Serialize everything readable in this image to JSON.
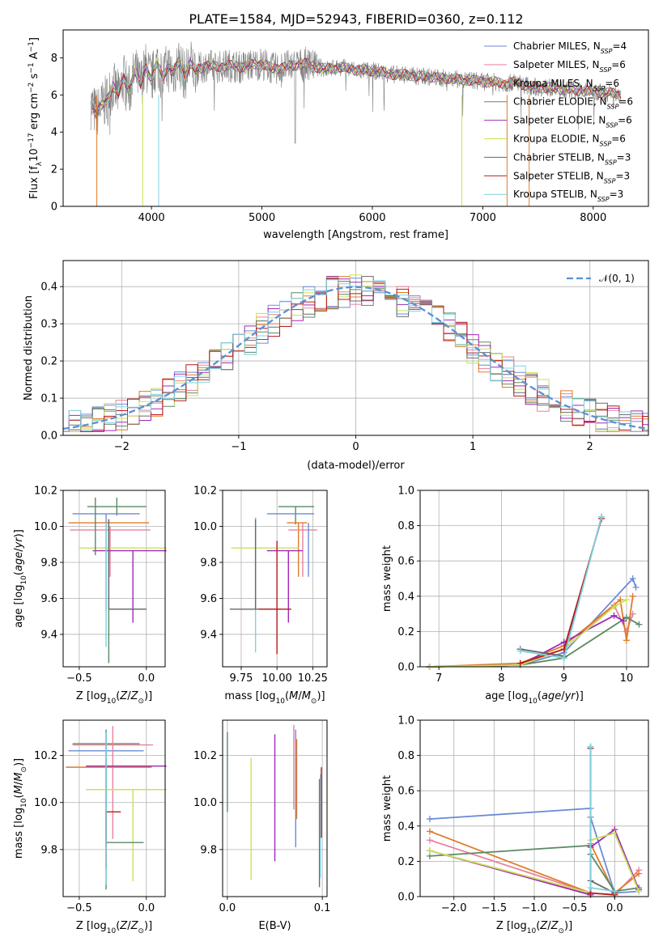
{
  "title": "PLATE=1584, MJD=52943, FIBERID=0360, z=0.112",
  "colors": [
    "#6b8bd6",
    "#e8819c",
    "#e07b28",
    "#5b8a65",
    "#a028b8",
    "#cbe05a",
    "#6a6a6a",
    "#b81a1a",
    "#7dd3e0"
  ],
  "chart_data": [
    {
      "id": "spectrum",
      "type": "line",
      "title": "PLATE=1584, MJD=52943, FIBERID=0360, z=0.112",
      "xlabel": "wavelength [Angstrom, rest frame]",
      "ylabel": "Flux [f_λ 10^-17 erg cm^-2 s^-1 A^-1]",
      "xlim": [
        3200,
        8500
      ],
      "ylim": [
        0,
        9.5
      ],
      "xticks": [
        "4000",
        "5000",
        "6000",
        "7000",
        "8000"
      ],
      "yticks": [
        "0",
        "2",
        "4",
        "6",
        "8"
      ],
      "legend_position": "right",
      "data_x": [
        3450,
        3500,
        3550,
        3600,
        3650,
        3700,
        3750,
        3800,
        3850,
        3900,
        3950,
        4000,
        4050,
        4100,
        4150,
        4200,
        4250,
        4300,
        4350,
        4400,
        4500,
        4600,
        4700,
        4800,
        4900,
        5000,
        5100,
        5200,
        5300,
        5400,
        5500,
        5600,
        5700,
        5800,
        5900,
        6000,
        6100,
        6200,
        6300,
        6400,
        6500,
        6600,
        6700,
        6800,
        6900,
        7000,
        7100,
        7200,
        7300,
        7400,
        7500,
        7600,
        7700,
        7800,
        7900,
        8000,
        8100,
        8200,
        8250
      ],
      "data_y": [
        5.5,
        5.0,
        5.4,
        5.8,
        6.5,
        6.0,
        6.9,
        6.2,
        7.3,
        6.6,
        7.5,
        6.8,
        7.7,
        7.0,
        7.5,
        7.2,
        7.8,
        7.0,
        7.7,
        7.3,
        7.6,
        7.5,
        7.6,
        7.5,
        7.6,
        7.7,
        7.4,
        7.5,
        7.6,
        7.7,
        7.5,
        7.4,
        7.5,
        7.4,
        7.3,
        7.3,
        7.2,
        7.1,
        7.1,
        7.0,
        7.0,
        6.9,
        6.9,
        6.8,
        6.8,
        6.7,
        6.7,
        6.6,
        6.7,
        6.5,
        6.4,
        6.4,
        6.3,
        6.3,
        6.2,
        6.2,
        6.1,
        6.1,
        6.0
      ],
      "series": [
        {
          "name": "Chabrier MILES, N_SSP=4",
          "label_parts": [
            "Chabrier MILES, N",
            "SSP",
            "=4"
          ]
        },
        {
          "name": "Salpeter MILES, N_SSP=6",
          "label_parts": [
            "Salpeter MILES, N",
            "SSP",
            "=6"
          ]
        },
        {
          "name": "Kroupa MILES, N_SSP=6",
          "label_parts": [
            "Kroupa MILES, N",
            "SSP",
            "=6"
          ]
        },
        {
          "name": "Chabrier ELODIE, N_SSP=6",
          "label_parts": [
            "Chabrier ELODIE, N",
            "SSP",
            "=6"
          ]
        },
        {
          "name": "Salpeter ELODIE, N_SSP=6",
          "label_parts": [
            "Salpeter ELODIE, N",
            "SSP",
            "=6"
          ]
        },
        {
          "name": "Kroupa ELODIE, N_SSP=6",
          "label_parts": [
            "Kroupa ELODIE, N",
            "SSP",
            "=6"
          ]
        },
        {
          "name": "Chabrier STELIB, N_SSP=3",
          "label_parts": [
            "Chabrier STELIB, N",
            "SSP",
            "=3"
          ]
        },
        {
          "name": "Salpeter STELIB, N_SSP=3",
          "label_parts": [
            "Salpeter STELIB, N",
            "SSP",
            "=3"
          ]
        },
        {
          "name": "Kroupa STELIB, N_SSP=3",
          "label_parts": [
            "Kroupa STELIB, N",
            "SSP",
            "=3"
          ]
        }
      ]
    },
    {
      "id": "residuals",
      "type": "step",
      "xlabel": "(data-model)/error",
      "ylabel": "Normed distribution",
      "xlim": [
        -2.5,
        2.5
      ],
      "ylim": [
        0,
        0.47
      ],
      "xticks": [
        "−2",
        "−1",
        "0",
        "1",
        "2"
      ],
      "yticks": [
        "0.0",
        "0.1",
        "0.2",
        "0.3",
        "0.4"
      ],
      "legend": [
        "𝒩(0, 1)"
      ],
      "legend_position": "top-right",
      "bin_width": 0.1
    },
    {
      "id": "age_vs_Z",
      "type": "errorbar",
      "xlabel": "Z [log10(Z/Z⊙)]",
      "ylabel": "age  [log10(age/yr)]",
      "xlim": [
        -0.62,
        0.14
      ],
      "ylim": [
        9.22,
        10.2
      ],
      "xticks": [
        "−0.5",
        "0.0"
      ],
      "yticks": [
        "9.4",
        "9.6",
        "9.8",
        "10.0",
        "10.2"
      ],
      "points": [
        {
          "x": -0.22,
          "y": 10.11,
          "xerr": [
            0.22,
            0.22
          ],
          "yerr": [
            0.05,
            0.05
          ],
          "c": 3
        },
        {
          "x": -0.3,
          "y": 10.07,
          "xerr": [
            0.25,
            0.25
          ],
          "yerr": [
            0.54,
            0.0
          ],
          "c": 0
        },
        {
          "x": -0.28,
          "y": 10.02,
          "xerr": [
            0.3,
            0.3
          ],
          "yerr": [
            0.2,
            0.0
          ],
          "c": 2
        },
        {
          "x": -0.27,
          "y": 9.98,
          "xerr": [
            0.3,
            0.3
          ],
          "yerr": [
            0.26,
            0.02
          ],
          "c": 1
        },
        {
          "x": -0.1,
          "y": 9.88,
          "xerr": [
            0.4,
            0.25
          ],
          "yerr": [
            0.0,
            0.0
          ],
          "c": 5
        },
        {
          "x": -0.1,
          "y": 9.865,
          "xerr": [
            0.3,
            0.25
          ],
          "yerr": [
            0.4,
            0.0
          ],
          "c": 4
        },
        {
          "x": -0.3,
          "y": 9.85,
          "xerr": [
            0.0,
            0.0
          ],
          "yerr": [
            0.52,
            0.17
          ],
          "c": 8
        },
        {
          "x": -0.28,
          "y": 9.54,
          "xerr": [
            0.0,
            0.28
          ],
          "yerr": [
            0.3,
            0.5
          ],
          "c": 3
        },
        {
          "x": -0.28,
          "y": 9.54,
          "xerr": [
            0.0,
            0.28
          ],
          "yerr": [
            0.0,
            0.5
          ],
          "c": 6
        },
        {
          "x": -0.38,
          "y": 9.98,
          "xerr": [
            0,
            0
          ],
          "yerr": [
            0.14,
            0.18
          ],
          "c": 3
        }
      ]
    },
    {
      "id": "age_vs_mass",
      "type": "errorbar",
      "xlabel": "mass [log10(M/M⊙)]",
      "ylabel": "",
      "xlim": [
        9.62,
        10.35
      ],
      "ylim": [
        9.22,
        10.2
      ],
      "xticks": [
        "9.75",
        "10.00",
        "10.25"
      ],
      "yticks": [
        "9.4",
        "9.6",
        "9.8",
        "10.0",
        "10.2"
      ],
      "points": [
        {
          "x": 10.13,
          "y": 10.11,
          "xerr": [
            0.12,
            0.13
          ],
          "yerr": [
            0.1,
            0.0
          ],
          "c": 3
        },
        {
          "x": 10.11,
          "y": 10.07,
          "xerr": [
            0.18,
            0.15
          ],
          "yerr": [
            0.0,
            0.0
          ],
          "c": 0
        },
        {
          "x": 10.15,
          "y": 10.02,
          "xerr": [
            0.08,
            0.06
          ],
          "yerr": [
            0.3,
            0.0
          ],
          "c": 2
        },
        {
          "x": 10.18,
          "y": 9.98,
          "xerr": [
            0.1,
            0.1
          ],
          "yerr": [
            0.26,
            0.04
          ],
          "c": 1
        },
        {
          "x": 9.9,
          "y": 9.88,
          "xerr": [
            0.22,
            0.25
          ],
          "yerr": [
            0.0,
            0.0
          ],
          "c": 5
        },
        {
          "x": 10.08,
          "y": 9.865,
          "xerr": [
            0.15,
            0.1
          ],
          "yerr": [
            0.4,
            0.0
          ],
          "c": 4
        },
        {
          "x": 9.85,
          "y": 9.85,
          "xerr": [
            0,
            0
          ],
          "yerr": [
            0.55,
            0.2
          ],
          "c": 8
        },
        {
          "x": 9.85,
          "y": 9.54,
          "xerr": [
            0.18,
            0.18
          ],
          "yerr": [
            0.0,
            0.5
          ],
          "c": 6
        },
        {
          "x": 10.0,
          "y": 9.54,
          "xerr": [
            0.13,
            0.1
          ],
          "yerr": [
            0.25,
            0.38
          ],
          "c": 7
        },
        {
          "x": 10.22,
          "y": 10.02,
          "xerr": [
            0,
            0
          ],
          "yerr": [
            0.3,
            0.0
          ],
          "c": 0
        }
      ]
    },
    {
      "id": "weight_vs_age",
      "type": "line",
      "xlabel": "age  [log10(age/yr)]",
      "ylabel": "mass weight",
      "xlim": [
        6.7,
        10.35
      ],
      "ylim": [
        0,
        1.0
      ],
      "xticks": [
        "7",
        "8",
        "9",
        "10"
      ],
      "yticks": [
        "0.0",
        "0.2",
        "0.4",
        "0.6",
        "0.8",
        "1.0"
      ],
      "series": [
        {
          "c": 0,
          "x": [
            6.85,
            8.3,
            9.0,
            10.1,
            10.15
          ],
          "y": [
            0.0,
            0.01,
            0.08,
            0.5,
            0.45
          ]
        },
        {
          "c": 1,
          "x": [
            6.85,
            8.3,
            9.0,
            9.8,
            10.0,
            10.1
          ],
          "y": [
            0.0,
            0.01,
            0.1,
            0.35,
            0.2,
            0.3
          ]
        },
        {
          "c": 2,
          "x": [
            6.85,
            8.3,
            9.0,
            9.9,
            10.0,
            10.1
          ],
          "y": [
            0.0,
            0.02,
            0.12,
            0.38,
            0.15,
            0.4
          ]
        },
        {
          "c": 3,
          "x": [
            6.85,
            8.3,
            9.0,
            10.0,
            10.2
          ],
          "y": [
            0.0,
            0.01,
            0.05,
            0.28,
            0.24
          ]
        },
        {
          "c": 4,
          "x": [
            6.85,
            8.3,
            9.0,
            9.8,
            9.95
          ],
          "y": [
            0.0,
            0.01,
            0.14,
            0.29,
            0.26
          ]
        },
        {
          "c": 5,
          "x": [
            6.85,
            8.3,
            9.0,
            9.8,
            10.0
          ],
          "y": [
            0.0,
            0.01,
            0.1,
            0.34,
            0.38
          ]
        },
        {
          "c": 6,
          "x": [
            8.3,
            9.0,
            9.6
          ],
          "y": [
            0.1,
            0.06,
            0.85
          ]
        },
        {
          "c": 7,
          "x": [
            8.3,
            9.0,
            9.6
          ],
          "y": [
            0.02,
            0.1,
            0.84
          ]
        },
        {
          "c": 8,
          "x": [
            8.3,
            9.0,
            9.6
          ],
          "y": [
            0.09,
            0.05,
            0.85
          ]
        }
      ]
    },
    {
      "id": "mass_vs_Z",
      "type": "errorbar",
      "xlabel": "Z [log10(Z/Z⊙)]",
      "ylabel": "mass [log10(M/M⊙)]",
      "xlim": [
        -0.62,
        0.14
      ],
      "ylim": [
        9.6,
        10.35
      ],
      "xticks": [
        "−0.5",
        "0.0"
      ],
      "yticks": [
        "9.8",
        "10.0",
        "10.2"
      ],
      "points": [
        {
          "x": -0.3,
          "y": 10.25,
          "xerr": [
            0.25,
            0.25
          ],
          "yerr": [
            0.4,
            0.06
          ],
          "c": 3
        },
        {
          "x": -0.3,
          "y": 10.22,
          "xerr": [
            0.28,
            0.28
          ],
          "yerr": [
            0.4,
            0.09
          ],
          "c": 0
        },
        {
          "x": -0.25,
          "y": 10.245,
          "xerr": [
            0.3,
            0.3
          ],
          "yerr": [
            0.4,
            0.08
          ],
          "c": 1
        },
        {
          "x": -0.28,
          "y": 10.15,
          "xerr": [
            0.32,
            0.32
          ],
          "yerr": [
            0.0,
            0.0
          ],
          "c": 2
        },
        {
          "x": -0.1,
          "y": 10.155,
          "xerr": [
            0.35,
            0.25
          ],
          "yerr": [
            0.0,
            0.0
          ],
          "c": 4
        },
        {
          "x": -0.1,
          "y": 10.055,
          "xerr": [
            0.35,
            0.25
          ],
          "yerr": [
            0.39,
            0.0
          ],
          "c": 5
        },
        {
          "x": -0.3,
          "y": 9.83,
          "xerr": [
            0,
            0.28
          ],
          "yerr": [
            0.2,
            0.35
          ],
          "c": 3
        },
        {
          "x": -0.3,
          "y": 9.96,
          "xerr": [
            0,
            0.11
          ],
          "yerr": [
            0.24,
            0.0
          ],
          "c": 7
        },
        {
          "x": -0.3,
          "y": 10.0,
          "xerr": [
            0,
            0
          ],
          "yerr": [
            0.35,
            0.3
          ],
          "c": 8
        }
      ]
    },
    {
      "id": "mass_vs_EBV",
      "type": "errorbar",
      "xlabel": "E(B-V)",
      "ylabel": "",
      "xlim": [
        -0.005,
        0.105
      ],
      "ylim": [
        9.6,
        10.35
      ],
      "xticks": [
        "0.0",
        "0.1"
      ],
      "yticks": [
        "9.8",
        "10.0",
        "10.2"
      ],
      "points": [
        {
          "x": 0.0,
          "y": 10.13,
          "xerr": [
            0,
            0
          ],
          "yerr": [
            0.17,
            0.17
          ],
          "c": 3
        },
        {
          "x": 0.025,
          "y": 9.93,
          "xerr": [
            0,
            0
          ],
          "yerr": [
            0.26,
            0.26
          ],
          "c": 5
        },
        {
          "x": 0.05,
          "y": 10.02,
          "xerr": [
            0,
            0
          ],
          "yerr": [
            0.27,
            0.27
          ],
          "c": 4
        },
        {
          "x": 0.07,
          "y": 10.15,
          "xerr": [
            0,
            0
          ],
          "yerr": [
            0.18,
            0.18
          ],
          "c": 1
        },
        {
          "x": 0.072,
          "y": 10.06,
          "xerr": [
            0,
            0
          ],
          "yerr": [
            0.25,
            0.25
          ],
          "c": 0
        },
        {
          "x": 0.073,
          "y": 10.1,
          "xerr": [
            0,
            0
          ],
          "yerr": [
            0.17,
            0.17
          ],
          "c": 2
        },
        {
          "x": 0.097,
          "y": 9.87,
          "xerr": [
            0,
            0
          ],
          "yerr": [
            0.23,
            0.23
          ],
          "c": 6
        },
        {
          "x": 0.098,
          "y": 9.9,
          "xerr": [
            0,
            0
          ],
          "yerr": [
            0.22,
            0.22
          ],
          "c": 8
        },
        {
          "x": 0.099,
          "y": 10.0,
          "xerr": [
            0,
            0
          ],
          "yerr": [
            0.15,
            0.15
          ],
          "c": 7
        }
      ]
    },
    {
      "id": "weight_vs_Z",
      "type": "line",
      "xlabel": "Z [log10(Z/Z⊙)]",
      "ylabel": "mass weight",
      "xlim": [
        -2.42,
        0.42
      ],
      "ylim": [
        0,
        1.0
      ],
      "xticks": [
        "−2.0",
        "−1.5",
        "−1.0",
        "−0.5",
        "0.0"
      ],
      "yticks": [
        "0.0",
        "0.2",
        "0.4",
        "0.6",
        "0.8",
        "1.0"
      ],
      "series": [
        {
          "c": 0,
          "x": [
            -2.3,
            -0.3,
            -0.3,
            0.0,
            0.3
          ],
          "y": [
            0.44,
            0.5,
            0.45,
            0.02,
            0.03
          ]
        },
        {
          "c": 1,
          "x": [
            -2.3,
            -0.3,
            0.0,
            0.3
          ],
          "y": [
            0.32,
            0.02,
            0.01,
            0.15
          ]
        },
        {
          "c": 2,
          "x": [
            -2.3,
            -0.3,
            -0.3,
            0.0,
            0.3
          ],
          "y": [
            0.37,
            0.02,
            0.3,
            0.02,
            0.13
          ]
        },
        {
          "c": 3,
          "x": [
            -2.3,
            -0.3,
            -0.3,
            0.0,
            0.3
          ],
          "y": [
            0.23,
            0.29,
            0.24,
            0.03,
            0.05
          ]
        },
        {
          "c": 4,
          "x": [
            -2.3,
            -0.3,
            -0.3,
            0.0,
            0.3
          ],
          "y": [
            0.26,
            0.01,
            0.28,
            0.38,
            0.04
          ]
        },
        {
          "c": 5,
          "x": [
            -2.3,
            -0.3,
            -0.3,
            0.0,
            0.3
          ],
          "y": [
            0.26,
            0.02,
            0.32,
            0.36,
            0.03
          ]
        },
        {
          "c": 6,
          "x": [
            -0.3,
            -0.3,
            0.0
          ],
          "y": [
            0.85,
            0.09,
            0.02
          ]
        },
        {
          "c": 7,
          "x": [
            -0.3,
            -0.3,
            0.0
          ],
          "y": [
            0.84,
            0.02,
            0.01
          ]
        },
        {
          "c": 8,
          "x": [
            -0.3,
            -0.3,
            0.0
          ],
          "y": [
            0.85,
            0.05,
            0.03
          ]
        }
      ]
    }
  ]
}
